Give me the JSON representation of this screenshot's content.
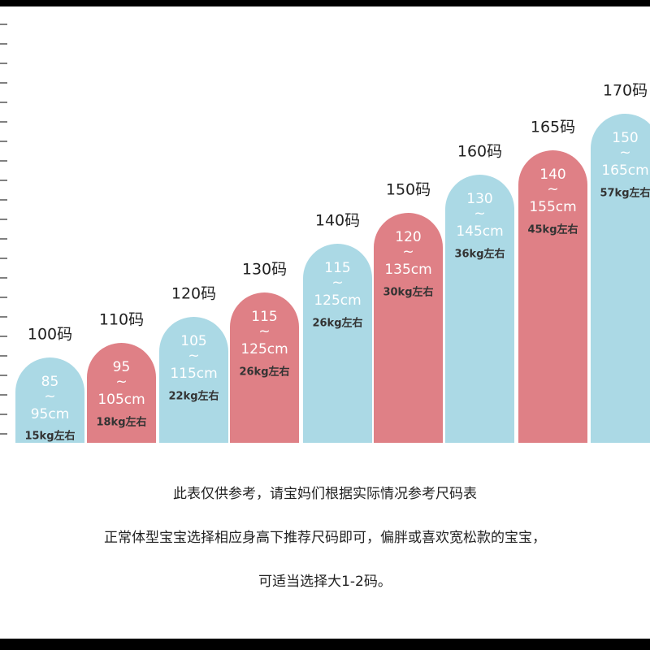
{
  "sizes": [
    {
      "label": "100码",
      "range": [
        "85",
        "~",
        "95cm"
      ],
      "weight": "15kg左右",
      "color": "#abd9e5"
    },
    {
      "label": "110码",
      "range": [
        "95",
        "~",
        "105cm"
      ],
      "weight": "18kg左右",
      "color": "#df8086"
    },
    {
      "label": "120码",
      "range": [
        "105",
        "~",
        "115cm"
      ],
      "weight": "22kg左右",
      "color": "#abd9e5"
    },
    {
      "label": "130码",
      "range": [
        "115",
        "~",
        "125cm"
      ],
      "weight": "26kg左右",
      "color": "#df8086"
    },
    {
      "label": "140码",
      "range": [
        "115",
        "~",
        "125cm"
      ],
      "weight": "26kg左右",
      "color": "#abd9e5"
    },
    {
      "label": "150码",
      "range": [
        "120",
        "~",
        "135cm"
      ],
      "weight": "30kg左右",
      "color": "#df8086"
    },
    {
      "label": "160码",
      "range": [
        "130",
        "~",
        "145cm"
      ],
      "weight": "36kg左右",
      "color": "#abd9e5"
    },
    {
      "label": "165码",
      "range": [
        "140",
        "~",
        "155cm"
      ],
      "weight": "45kg左右",
      "color": "#df8086"
    },
    {
      "label": "170码",
      "range": [
        "150",
        "~",
        "165cm"
      ],
      "weight": "57kg左右",
      "color": "#abd9e5"
    }
  ],
  "notes": [
    "此表仅供参考，请宝妈们根据实际情况参考尺码表",
    "正常体型宝宝选择相应身高下推荐尺码即可，偏胖或喜欢宽松款的宝宝，",
    "可适当选择大1-2码。"
  ]
}
